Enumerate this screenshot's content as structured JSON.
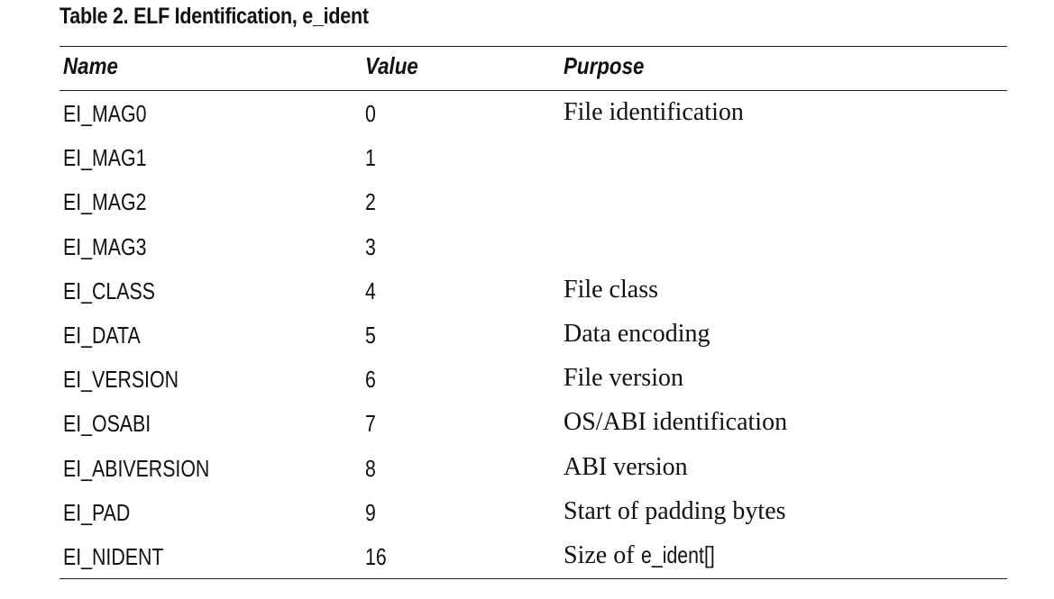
{
  "table": {
    "caption": "Table 2.  ELF Identification, e_ident",
    "headers": {
      "name": "Name",
      "value": "Value",
      "purpose": "Purpose"
    },
    "rows": [
      {
        "name": "EI_MAG0",
        "value": "0",
        "purpose": "File identification"
      },
      {
        "name": "EI_MAG1",
        "value": "1",
        "purpose": ""
      },
      {
        "name": "EI_MAG2",
        "value": "2",
        "purpose": ""
      },
      {
        "name": "EI_MAG3",
        "value": "3",
        "purpose": ""
      },
      {
        "name": "EI_CLASS",
        "value": "4",
        "purpose": "File class"
      },
      {
        "name": "EI_DATA",
        "value": "5",
        "purpose": "Data encoding"
      },
      {
        "name": "EI_VERSION",
        "value": "6",
        "purpose": "File version"
      },
      {
        "name": "EI_OSABI",
        "value": "7",
        "purpose": "OS/ABI identification"
      },
      {
        "name": "EI_ABIVERSION",
        "value": "8",
        "purpose": "ABI version"
      },
      {
        "name": "EI_PAD",
        "value": "9",
        "purpose": "Start of padding bytes"
      },
      {
        "name": "EI_NIDENT",
        "value": "16",
        "purpose": "Size of ",
        "purpose_code": "e_ident[]"
      }
    ]
  }
}
